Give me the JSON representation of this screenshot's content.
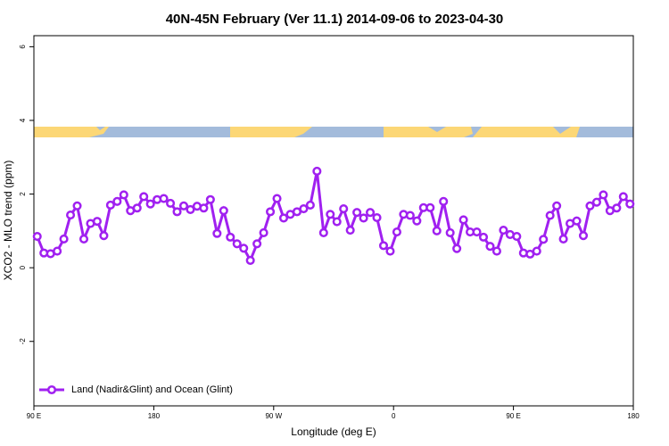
{
  "chart_data": {
    "type": "line",
    "title": "40N-45N February (Ver 11.1)   2014-09-06 to 2023-04-30",
    "x_label": "Longitude (deg E)",
    "y_label": "XCO2 - MLO trend (ppm)",
    "xlim": [
      90,
      540
    ],
    "ylim": [
      -3.75,
      6.3
    ],
    "xticks": [
      {
        "value": 90,
        "label": "90 E"
      },
      180,
      {
        "value": 270,
        "label": "90 W"
      },
      {
        "value": 360,
        "label": "0"
      },
      {
        "value": 450,
        "label": "90 E"
      },
      {
        "value": 540,
        "label": "180"
      }
    ],
    "yticks": [
      -2,
      0,
      2,
      4,
      6
    ],
    "legend_position": "bottom-left",
    "x": [
      92.5,
      97.5,
      102.5,
      107.5,
      112.5,
      117.5,
      122.5,
      127.5,
      132.5,
      137.5,
      142.5,
      147.5,
      152.5,
      157.5,
      162.5,
      167.5,
      172.5,
      177.5,
      182.5,
      187.5,
      192.5,
      197.5,
      202.5,
      207.5,
      212.5,
      217.5,
      222.5,
      227.5,
      232.5,
      237.5,
      242.5,
      247.5,
      252.5,
      257.5,
      262.5,
      267.5,
      272.5,
      277.5,
      282.5,
      287.5,
      292.5,
      297.5,
      302.5,
      307.5,
      312.5,
      317.5,
      322.5,
      327.5,
      332.5,
      337.5,
      342.5,
      347.5,
      352.5,
      357.5,
      362.5,
      367.5,
      372.5,
      377.5,
      382.5,
      387.5,
      392.5,
      397.5,
      402.5,
      407.5,
      412.5,
      417.5,
      422.5,
      427.5,
      432.5,
      437.5,
      442.5,
      447.5,
      452.5,
      457.5,
      462.5,
      467.5,
      472.5,
      477.5,
      482.5,
      487.5,
      492.5,
      497.5,
      502.5,
      507.5,
      512.5,
      517.5,
      522.5,
      527.5,
      532.5,
      537.5
    ],
    "series": [
      {
        "name": "Land (Nadir&Glint) and Ocean (Glint)",
        "color": "#a020f0",
        "values": [
          0.85,
          0.4,
          0.38,
          0.45,
          0.78,
          1.43,
          1.68,
          0.78,
          1.2,
          1.26,
          0.87,
          1.7,
          1.8,
          1.98,
          1.55,
          1.62,
          1.93,
          1.73,
          1.85,
          1.88,
          1.75,
          1.52,
          1.68,
          1.58,
          1.67,
          1.62,
          1.85,
          0.93,
          1.55,
          0.83,
          0.65,
          0.53,
          0.2,
          0.65,
          0.95,
          1.52,
          1.88,
          1.35,
          1.45,
          1.52,
          1.6,
          1.7,
          2.62,
          0.95,
          1.45,
          1.25,
          1.6,
          1.02,
          1.5,
          1.35,
          1.5,
          1.36,
          0.6,
          0.45,
          0.97,
          1.45,
          1.42,
          1.27,
          1.63,
          1.63,
          1.0,
          1.8,
          0.95,
          0.52,
          1.3,
          0.97,
          0.97,
          0.83,
          0.58,
          0.45,
          1.02,
          0.9,
          0.85,
          0.4,
          0.37,
          0.45,
          0.77,
          1.42,
          1.68,
          0.78,
          1.2,
          1.27,
          0.87,
          1.68,
          1.78,
          1.98,
          1.55,
          1.62,
          1.93,
          1.73
        ]
      }
    ]
  }
}
